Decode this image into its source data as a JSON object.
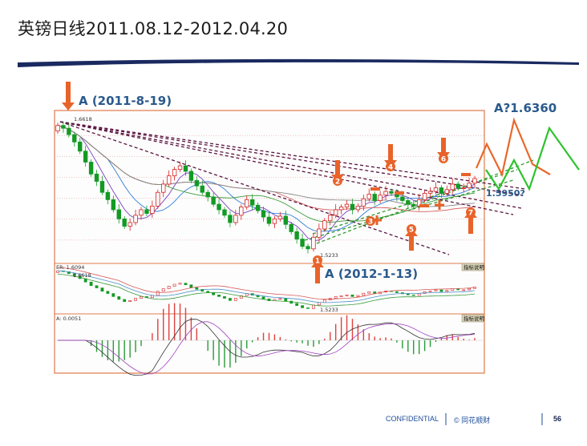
{
  "slide": {
    "title": "英镑日线2011.08.12-2012.04.20",
    "page_number": "56",
    "footer_confidential": "CONFIDENTIAL",
    "footer_company": "© 同花顺财"
  },
  "annotations": {
    "high_label": "A (2011-8-19)",
    "low_label": "A (2012-1-13)",
    "target_label": "A?1.6360",
    "support_label": "1.5950?",
    "wave_numbers": [
      "1",
      "2",
      "3",
      "4",
      "5",
      "6",
      "7"
    ]
  },
  "chart_data": [
    {
      "type": "candlestick",
      "title": "",
      "price_labels": [
        "1.6618",
        "1.5233"
      ],
      "high": 1.6618,
      "low": 1.5233,
      "ylim": [
        1.51,
        1.67
      ],
      "close_series": [
        1.658,
        1.655,
        1.648,
        1.64,
        1.63,
        1.618,
        1.605,
        1.597,
        1.585,
        1.577,
        1.566,
        1.556,
        1.548,
        1.552,
        1.56,
        1.566,
        1.562,
        1.57,
        1.585,
        1.594,
        1.603,
        1.61,
        1.614,
        1.608,
        1.598,
        1.592,
        1.585,
        1.58,
        1.572,
        1.566,
        1.56,
        1.552,
        1.56,
        1.569,
        1.577,
        1.571,
        1.565,
        1.558,
        1.551,
        1.556,
        1.559,
        1.55,
        1.542,
        1.534,
        1.526,
        1.5233,
        1.536,
        1.545,
        1.554,
        1.56,
        1.566,
        1.569,
        1.572,
        1.566,
        1.57,
        1.578,
        1.583,
        1.576,
        1.582,
        1.586,
        1.584,
        1.58,
        1.576,
        1.572,
        1.57,
        1.577,
        1.584,
        1.586,
        1.59,
        1.584,
        1.588,
        1.594,
        1.59,
        1.59,
        1.595,
        1.6
      ]
    },
    {
      "type": "line",
      "title": "",
      "header_label": "ER: 1.6094",
      "price_labels": [
        "1.6618",
        "1.5233"
      ],
      "indicator_button": "指标说明"
    },
    {
      "type": "bar",
      "title": "",
      "header_label": "A: 0.0051",
      "indicator_button": "指标说明"
    }
  ]
}
